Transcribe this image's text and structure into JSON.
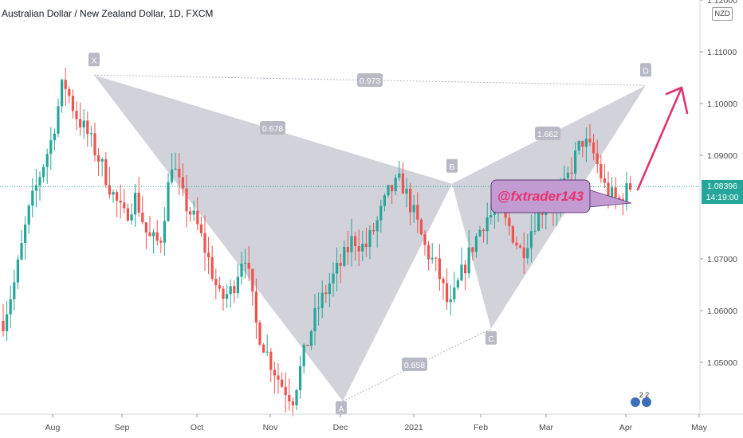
{
  "chart_title": "Australian Dollar / New Zealand Dollar, 1D, FXCM",
  "currency": "NZD",
  "last_price": "1.08396",
  "countdown": "14:19:00",
  "watermark": "@fxtrader143",
  "badge_text": "2 2",
  "colors": {
    "up": "#26a69a",
    "down": "#ef5350",
    "pattern": "#c9cad3",
    "arrow": "#e0336a",
    "watermark_bg": "#c39bd3"
  },
  "chart_data": {
    "type": "candlestick",
    "title": "Australian Dollar / New Zealand Dollar, 1D, FXCM",
    "x_ticks": [
      "Aug",
      "Sep",
      "Oct",
      "Nov",
      "Dec",
      "2021",
      "Feb",
      "Mar",
      "Apr",
      "May"
    ],
    "y_ticks": [
      "1.12000",
      "1.11000",
      "1.10000",
      "1.09000",
      "1.07000",
      "1.06000",
      "1.05000"
    ],
    "ylim": [
      1.0395,
      1.1225
    ],
    "grid": false,
    "pattern_points": [
      {
        "label": "X",
        "value": 1.1055
      },
      {
        "label": "A",
        "value": 1.0425
      },
      {
        "label": "B",
        "value": 1.0845
      },
      {
        "label": "C",
        "value": 1.0565
      },
      {
        "label": "D",
        "value": 1.1035
      }
    ],
    "ratios": [
      "0.973",
      "0.678",
      "1.662",
      "0.658"
    ],
    "trend_path": [
      1.058,
      1.066,
      1.078,
      1.086,
      1.093,
      1.1045,
      1.098,
      1.094,
      1.089,
      1.083,
      1.078,
      1.082,
      1.074,
      1.073,
      1.089,
      1.081,
      1.077,
      1.07,
      1.062,
      1.064,
      1.072,
      1.057,
      1.051,
      1.046,
      1.043,
      1.052,
      1.06,
      1.065,
      1.069,
      1.074,
      1.072,
      1.077,
      1.083,
      1.085,
      1.079,
      1.072,
      1.068,
      1.06,
      1.067,
      1.073,
      1.078,
      1.079,
      1.076,
      1.071,
      1.077,
      1.081,
      1.08,
      1.087,
      1.093,
      1.09,
      1.083,
      1.081,
      1.084
    ]
  }
}
